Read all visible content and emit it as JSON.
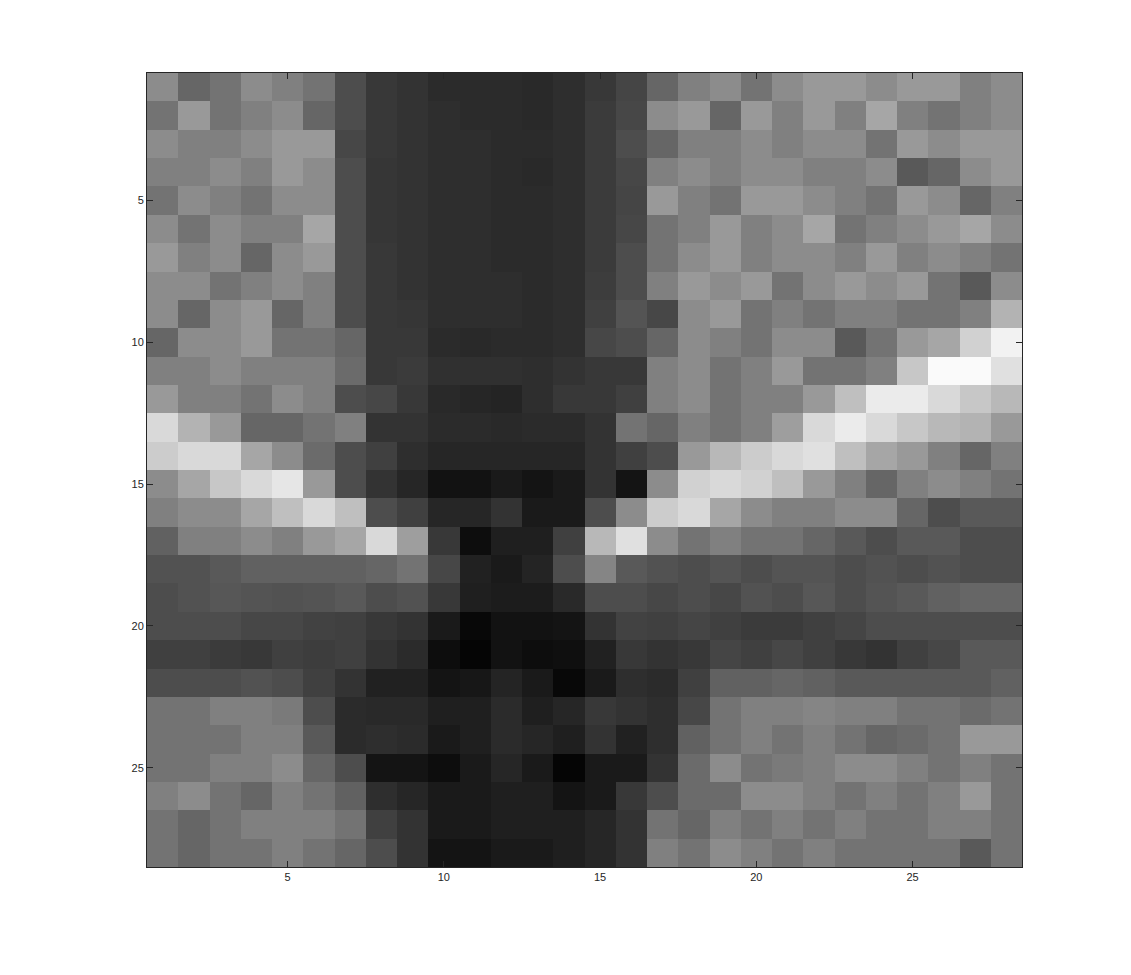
{
  "chart_data": {
    "type": "heatmap",
    "x": [
      1,
      2,
      3,
      4,
      5,
      6,
      7,
      8,
      9,
      10,
      11,
      12,
      13,
      14,
      15,
      16,
      17,
      18,
      19,
      20,
      21,
      22,
      23,
      24,
      25,
      26,
      27,
      28
    ],
    "y": [
      1,
      2,
      3,
      4,
      5,
      6,
      7,
      8,
      9,
      10,
      11,
      12,
      13,
      14,
      15,
      16,
      17,
      18,
      19,
      20,
      21,
      22,
      23,
      24,
      25,
      26,
      27,
      28
    ],
    "xlim": [
      0.5,
      28.5
    ],
    "ylim": [
      28.5,
      0.5
    ],
    "xticks": [
      5,
      10,
      15,
      20,
      25
    ],
    "yticks": [
      5,
      10,
      15,
      20,
      25
    ],
    "zlim": [
      0,
      1
    ],
    "grid": false,
    "cells": [
      [
        0.55,
        0.4,
        0.45,
        0.55,
        0.5,
        0.45,
        0.3,
        0.22,
        0.2,
        0.17,
        0.17,
        0.17,
        0.16,
        0.18,
        0.22,
        0.27,
        0.4,
        0.5,
        0.55,
        0.45,
        0.55,
        0.6,
        0.6,
        0.55,
        0.6,
        0.6,
        0.5,
        0.55
      ],
      [
        0.45,
        0.6,
        0.45,
        0.5,
        0.55,
        0.4,
        0.3,
        0.22,
        0.2,
        0.18,
        0.17,
        0.17,
        0.16,
        0.18,
        0.23,
        0.28,
        0.55,
        0.6,
        0.4,
        0.6,
        0.5,
        0.6,
        0.5,
        0.65,
        0.5,
        0.45,
        0.5,
        0.55
      ],
      [
        0.55,
        0.5,
        0.5,
        0.55,
        0.6,
        0.6,
        0.28,
        0.22,
        0.2,
        0.18,
        0.18,
        0.17,
        0.17,
        0.18,
        0.23,
        0.3,
        0.4,
        0.5,
        0.5,
        0.55,
        0.5,
        0.55,
        0.55,
        0.45,
        0.6,
        0.55,
        0.6,
        0.6
      ],
      [
        0.5,
        0.5,
        0.55,
        0.5,
        0.6,
        0.55,
        0.3,
        0.21,
        0.2,
        0.18,
        0.18,
        0.17,
        0.16,
        0.18,
        0.23,
        0.28,
        0.5,
        0.55,
        0.5,
        0.55,
        0.55,
        0.5,
        0.5,
        0.55,
        0.35,
        0.4,
        0.55,
        0.6
      ],
      [
        0.45,
        0.55,
        0.5,
        0.45,
        0.55,
        0.55,
        0.3,
        0.21,
        0.2,
        0.18,
        0.18,
        0.17,
        0.17,
        0.18,
        0.23,
        0.27,
        0.6,
        0.5,
        0.45,
        0.6,
        0.6,
        0.55,
        0.5,
        0.45,
        0.6,
        0.55,
        0.4,
        0.5
      ],
      [
        0.55,
        0.45,
        0.55,
        0.5,
        0.5,
        0.65,
        0.3,
        0.21,
        0.2,
        0.18,
        0.18,
        0.17,
        0.17,
        0.18,
        0.23,
        0.28,
        0.45,
        0.5,
        0.6,
        0.5,
        0.55,
        0.65,
        0.45,
        0.5,
        0.55,
        0.6,
        0.65,
        0.55
      ],
      [
        0.6,
        0.5,
        0.55,
        0.4,
        0.55,
        0.6,
        0.3,
        0.22,
        0.2,
        0.18,
        0.18,
        0.17,
        0.17,
        0.18,
        0.23,
        0.3,
        0.45,
        0.55,
        0.6,
        0.5,
        0.55,
        0.55,
        0.5,
        0.6,
        0.5,
        0.55,
        0.5,
        0.45
      ],
      [
        0.55,
        0.55,
        0.45,
        0.5,
        0.55,
        0.5,
        0.3,
        0.22,
        0.2,
        0.18,
        0.18,
        0.18,
        0.17,
        0.18,
        0.24,
        0.3,
        0.5,
        0.6,
        0.55,
        0.6,
        0.45,
        0.55,
        0.6,
        0.55,
        0.6,
        0.45,
        0.35,
        0.55
      ],
      [
        0.55,
        0.4,
        0.55,
        0.6,
        0.4,
        0.5,
        0.3,
        0.22,
        0.21,
        0.18,
        0.18,
        0.18,
        0.17,
        0.18,
        0.25,
        0.33,
        0.28,
        0.55,
        0.6,
        0.45,
        0.5,
        0.45,
        0.5,
        0.5,
        0.45,
        0.45,
        0.5,
        0.7
      ],
      [
        0.4,
        0.55,
        0.55,
        0.6,
        0.45,
        0.45,
        0.4,
        0.22,
        0.22,
        0.17,
        0.16,
        0.17,
        0.17,
        0.18,
        0.28,
        0.3,
        0.4,
        0.55,
        0.5,
        0.45,
        0.55,
        0.55,
        0.35,
        0.45,
        0.6,
        0.65,
        0.82,
        0.95
      ],
      [
        0.5,
        0.5,
        0.55,
        0.5,
        0.5,
        0.5,
        0.42,
        0.22,
        0.23,
        0.19,
        0.19,
        0.19,
        0.18,
        0.2,
        0.22,
        0.22,
        0.5,
        0.55,
        0.45,
        0.5,
        0.6,
        0.45,
        0.45,
        0.5,
        0.78,
        0.98,
        0.98,
        0.88
      ],
      [
        0.6,
        0.5,
        0.5,
        0.45,
        0.55,
        0.5,
        0.3,
        0.28,
        0.22,
        0.16,
        0.15,
        0.14,
        0.18,
        0.22,
        0.22,
        0.25,
        0.5,
        0.55,
        0.45,
        0.5,
        0.5,
        0.6,
        0.75,
        0.92,
        0.92,
        0.85,
        0.78,
        0.72
      ],
      [
        0.85,
        0.7,
        0.6,
        0.4,
        0.4,
        0.45,
        0.5,
        0.2,
        0.2,
        0.17,
        0.17,
        0.16,
        0.17,
        0.17,
        0.2,
        0.45,
        0.4,
        0.5,
        0.45,
        0.5,
        0.62,
        0.85,
        0.92,
        0.85,
        0.78,
        0.72,
        0.7,
        0.6
      ],
      [
        0.8,
        0.85,
        0.85,
        0.65,
        0.55,
        0.42,
        0.3,
        0.25,
        0.18,
        0.15,
        0.15,
        0.15,
        0.15,
        0.15,
        0.2,
        0.25,
        0.3,
        0.6,
        0.72,
        0.8,
        0.85,
        0.88,
        0.75,
        0.65,
        0.6,
        0.5,
        0.4,
        0.5
      ],
      [
        0.55,
        0.65,
        0.78,
        0.85,
        0.9,
        0.6,
        0.3,
        0.2,
        0.15,
        0.07,
        0.07,
        0.1,
        0.08,
        0.1,
        0.2,
        0.08,
        0.55,
        0.82,
        0.85,
        0.82,
        0.75,
        0.6,
        0.5,
        0.4,
        0.5,
        0.55,
        0.5,
        0.45
      ],
      [
        0.5,
        0.55,
        0.55,
        0.65,
        0.75,
        0.85,
        0.75,
        0.3,
        0.25,
        0.15,
        0.15,
        0.2,
        0.1,
        0.1,
        0.3,
        0.55,
        0.8,
        0.85,
        0.65,
        0.55,
        0.5,
        0.5,
        0.55,
        0.55,
        0.4,
        0.3,
        0.35,
        0.35
      ],
      [
        0.38,
        0.5,
        0.5,
        0.55,
        0.5,
        0.6,
        0.65,
        0.85,
        0.62,
        0.22,
        0.05,
        0.12,
        0.12,
        0.25,
        0.72,
        0.88,
        0.55,
        0.45,
        0.5,
        0.45,
        0.45,
        0.4,
        0.35,
        0.3,
        0.35,
        0.35,
        0.3,
        0.3
      ],
      [
        0.32,
        0.32,
        0.35,
        0.38,
        0.38,
        0.38,
        0.38,
        0.4,
        0.45,
        0.28,
        0.13,
        0.1,
        0.14,
        0.3,
        0.52,
        0.35,
        0.32,
        0.3,
        0.33,
        0.3,
        0.33,
        0.33,
        0.3,
        0.32,
        0.3,
        0.32,
        0.3,
        0.3
      ],
      [
        0.3,
        0.32,
        0.34,
        0.33,
        0.32,
        0.33,
        0.35,
        0.3,
        0.32,
        0.22,
        0.12,
        0.11,
        0.11,
        0.16,
        0.3,
        0.3,
        0.28,
        0.3,
        0.28,
        0.32,
        0.3,
        0.34,
        0.3,
        0.33,
        0.35,
        0.38,
        0.4,
        0.4
      ],
      [
        0.3,
        0.3,
        0.3,
        0.28,
        0.28,
        0.26,
        0.25,
        0.22,
        0.2,
        0.1,
        0.03,
        0.07,
        0.07,
        0.08,
        0.2,
        0.26,
        0.25,
        0.27,
        0.25,
        0.23,
        0.23,
        0.25,
        0.27,
        0.3,
        0.3,
        0.3,
        0.3,
        0.3
      ],
      [
        0.25,
        0.25,
        0.23,
        0.22,
        0.25,
        0.24,
        0.25,
        0.2,
        0.17,
        0.05,
        0.02,
        0.07,
        0.05,
        0.06,
        0.13,
        0.22,
        0.2,
        0.22,
        0.27,
        0.25,
        0.28,
        0.25,
        0.22,
        0.2,
        0.25,
        0.28,
        0.35,
        0.35
      ],
      [
        0.3,
        0.3,
        0.3,
        0.32,
        0.3,
        0.25,
        0.2,
        0.13,
        0.13,
        0.08,
        0.09,
        0.14,
        0.1,
        0.03,
        0.1,
        0.18,
        0.17,
        0.25,
        0.38,
        0.38,
        0.4,
        0.38,
        0.35,
        0.35,
        0.35,
        0.35,
        0.35,
        0.38
      ],
      [
        0.45,
        0.45,
        0.5,
        0.5,
        0.48,
        0.3,
        0.17,
        0.16,
        0.16,
        0.12,
        0.12,
        0.17,
        0.12,
        0.15,
        0.22,
        0.2,
        0.18,
        0.28,
        0.45,
        0.5,
        0.5,
        0.52,
        0.5,
        0.5,
        0.45,
        0.45,
        0.42,
        0.45
      ],
      [
        0.45,
        0.45,
        0.45,
        0.5,
        0.5,
        0.35,
        0.17,
        0.18,
        0.17,
        0.1,
        0.12,
        0.17,
        0.15,
        0.12,
        0.2,
        0.13,
        0.18,
        0.38,
        0.45,
        0.5,
        0.45,
        0.5,
        0.45,
        0.4,
        0.42,
        0.45,
        0.6,
        0.6
      ],
      [
        0.45,
        0.45,
        0.5,
        0.5,
        0.55,
        0.4,
        0.3,
        0.08,
        0.08,
        0.05,
        0.1,
        0.15,
        0.1,
        0.02,
        0.1,
        0.1,
        0.2,
        0.42,
        0.55,
        0.45,
        0.48,
        0.5,
        0.55,
        0.55,
        0.5,
        0.45,
        0.5,
        0.45
      ],
      [
        0.5,
        0.55,
        0.45,
        0.4,
        0.5,
        0.45,
        0.38,
        0.18,
        0.15,
        0.1,
        0.1,
        0.12,
        0.12,
        0.08,
        0.1,
        0.22,
        0.3,
        0.42,
        0.42,
        0.55,
        0.55,
        0.5,
        0.45,
        0.5,
        0.45,
        0.5,
        0.6,
        0.45
      ],
      [
        0.45,
        0.4,
        0.45,
        0.5,
        0.5,
        0.5,
        0.45,
        0.25,
        0.2,
        0.1,
        0.1,
        0.12,
        0.12,
        0.12,
        0.15,
        0.2,
        0.45,
        0.4,
        0.5,
        0.45,
        0.5,
        0.45,
        0.5,
        0.45,
        0.45,
        0.5,
        0.5,
        0.45
      ],
      [
        0.45,
        0.4,
        0.45,
        0.45,
        0.5,
        0.45,
        0.4,
        0.3,
        0.2,
        0.08,
        0.08,
        0.1,
        0.1,
        0.12,
        0.15,
        0.2,
        0.5,
        0.45,
        0.55,
        0.5,
        0.45,
        0.5,
        0.45,
        0.45,
        0.45,
        0.45,
        0.35,
        0.45
      ]
    ]
  }
}
